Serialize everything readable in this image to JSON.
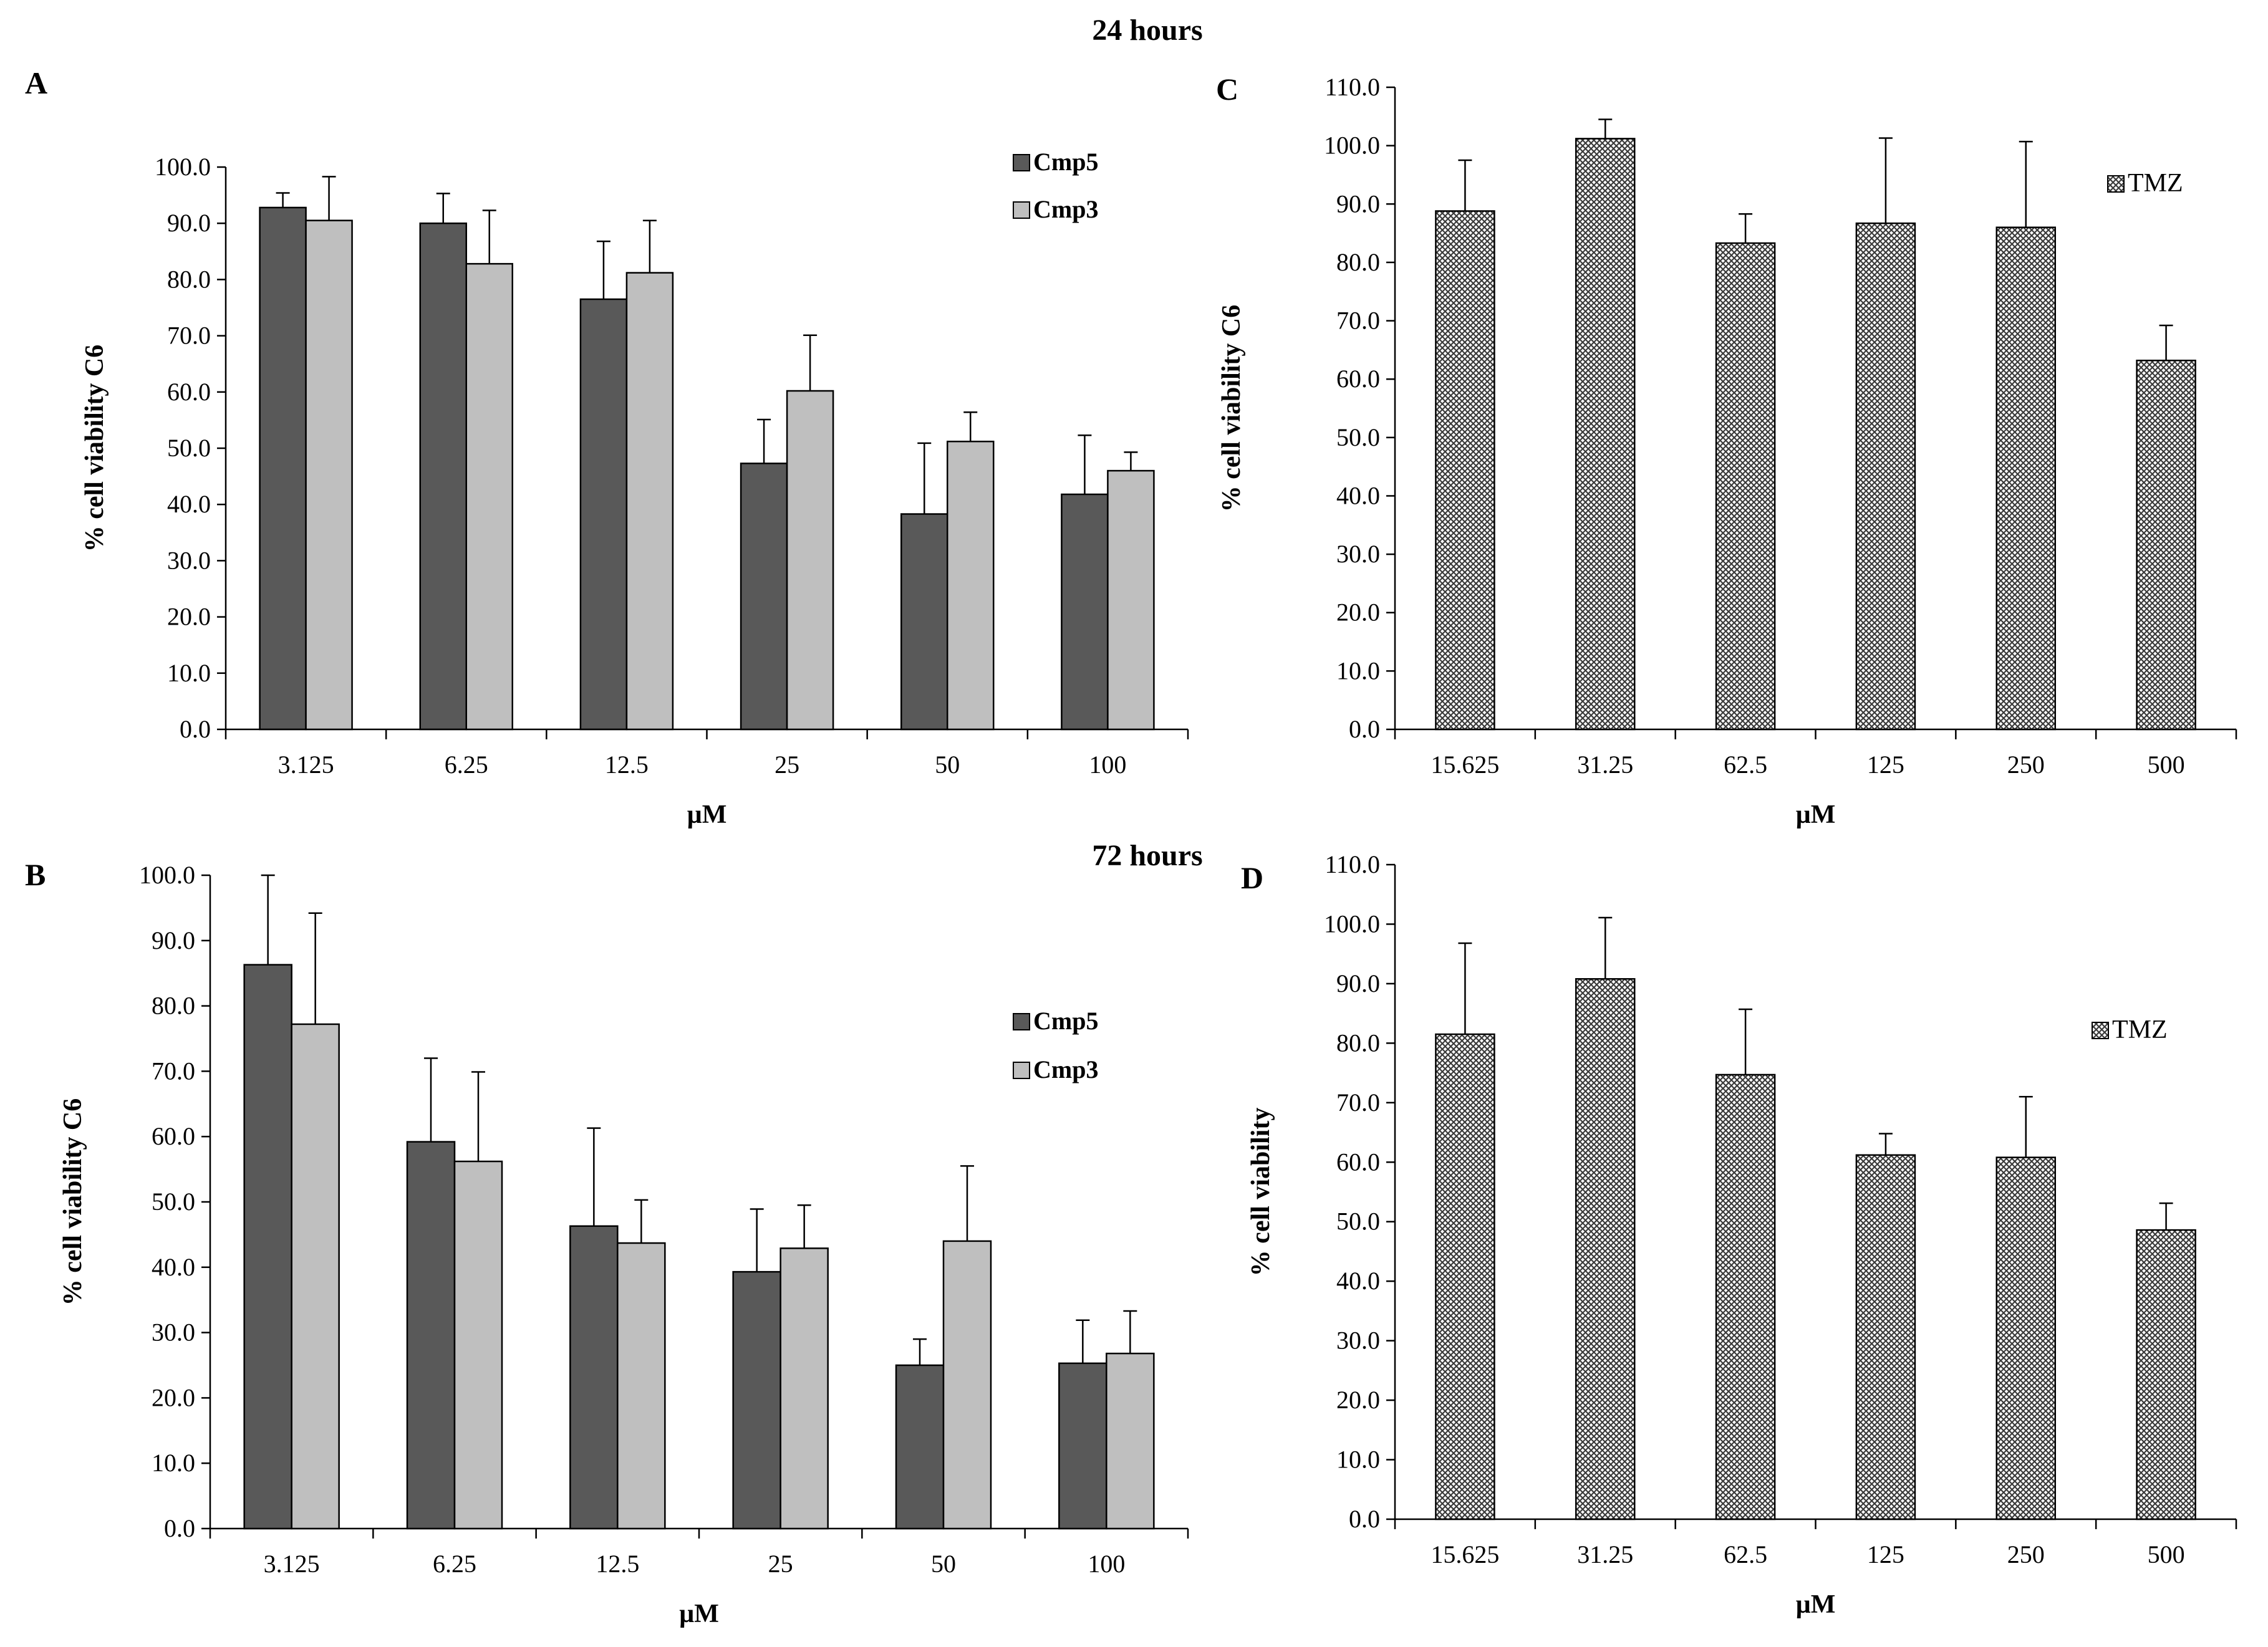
{
  "figure": {
    "time_labels": [
      "24 hours",
      "72 hours"
    ],
    "colors": {
      "cmp5": "#595959",
      "cmp3": "#bfbfbf",
      "tmz_pattern": "crosshatch"
    }
  },
  "chart_data": [
    {
      "id": "A",
      "type": "bar",
      "panel_label": "A",
      "xlabel": "µM",
      "ylabel": "% cell viability  C6",
      "ylim": [
        0,
        100
      ],
      "ytick_step": 10,
      "categories": [
        "3.125",
        "6.25",
        "12.5",
        "25",
        "50",
        "100"
      ],
      "legend_position": "top-right",
      "series": [
        {
          "name": "Cmp5",
          "values": [
            92.8,
            90.0,
            76.5,
            47.3,
            38.3,
            41.8
          ],
          "errors": [
            2.6,
            5.3,
            10.3,
            7.8,
            12.6,
            10.5
          ]
        },
        {
          "name": "Cmp3",
          "values": [
            90.5,
            82.8,
            81.2,
            60.2,
            51.2,
            46.0
          ],
          "errors": [
            7.8,
            9.5,
            9.3,
            9.9,
            5.2,
            3.3
          ]
        }
      ]
    },
    {
      "id": "B",
      "type": "bar",
      "panel_label": "B",
      "xlabel": "µM",
      "ylabel": "% cell viability  C6",
      "ylim": [
        0,
        100
      ],
      "ytick_step": 10,
      "categories": [
        "3.125",
        "6.25",
        "12.5",
        "25",
        "50",
        "100"
      ],
      "legend_position": "right",
      "series": [
        {
          "name": "Cmp5",
          "values": [
            86.3,
            59.2,
            46.3,
            39.3,
            25.0,
            25.3
          ],
          "errors": [
            13.7,
            12.8,
            15.0,
            9.6,
            4.0,
            6.6
          ]
        },
        {
          "name": "Cmp3",
          "values": [
            77.2,
            56.2,
            43.7,
            42.9,
            44.0,
            26.8
          ],
          "errors": [
            17.0,
            13.7,
            6.6,
            6.6,
            11.5,
            6.5
          ]
        }
      ]
    },
    {
      "id": "C",
      "type": "bar",
      "panel_label": "C",
      "xlabel": "µM",
      "ylabel": "% cell viability  C6",
      "ylim": [
        0,
        110
      ],
      "ytick_step": 10,
      "categories": [
        "15.625",
        "31.25",
        "62.5",
        "125",
        "250",
        "500"
      ],
      "legend_position": "top-right",
      "series": [
        {
          "name": "TMZ",
          "values": [
            88.8,
            101.2,
            83.3,
            86.7,
            86.0,
            63.2
          ],
          "errors": [
            8.7,
            3.3,
            5.0,
            14.6,
            14.7,
            6.0
          ]
        }
      ]
    },
    {
      "id": "D",
      "type": "bar",
      "panel_label": "D",
      "xlabel": "µM",
      "ylabel": "% cell viability",
      "ylim": [
        0,
        110
      ],
      "ytick_step": 10,
      "categories": [
        "15.625",
        "31.25",
        "62.5",
        "125",
        "250",
        "500"
      ],
      "legend_position": "top-right",
      "series": [
        {
          "name": "TMZ",
          "values": [
            81.5,
            90.8,
            74.7,
            61.2,
            60.8,
            48.6
          ],
          "errors": [
            15.3,
            10.3,
            11.0,
            3.6,
            10.2,
            4.5
          ]
        }
      ]
    }
  ]
}
